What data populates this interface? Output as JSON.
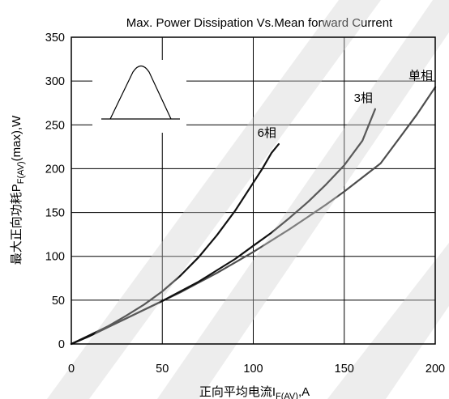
{
  "chart_data": {
    "type": "line",
    "title": "Max. Power Dissipation Vs.Mean forward Current",
    "xlabel": {
      "main": "正向平均电流I",
      "sub": "F(AV)",
      "suffix": ",A"
    },
    "ylabel": {
      "main": "最大正向功耗P",
      "sub": "F(AV)",
      "suffix": "(max),W"
    },
    "xlim": [
      0,
      200
    ],
    "ylim": [
      0,
      350
    ],
    "xticks": [
      0,
      50,
      100,
      150,
      200
    ],
    "yticks": [
      0,
      50,
      100,
      150,
      200,
      250,
      300,
      350
    ],
    "grid": true,
    "series": [
      {
        "name": "单相",
        "color": "#4d4d4d",
        "x": [
          0,
          10,
          20,
          30,
          40,
          50,
          60,
          70,
          80,
          90,
          100,
          110,
          120,
          130,
          140,
          150,
          160,
          170,
          180,
          190,
          200
        ],
        "y": [
          0,
          9,
          19,
          29,
          39,
          49,
          59,
          70,
          81,
          93,
          105,
          118,
          131,
          145,
          159,
          174,
          190,
          206,
          234,
          262,
          293
        ]
      },
      {
        "name": "3相",
        "color": "#111111",
        "x": [
          0,
          10,
          20,
          30,
          40,
          50,
          60,
          70,
          80,
          90,
          100,
          110,
          120,
          130,
          140,
          150,
          160,
          167
        ],
        "y": [
          0,
          9,
          19,
          29,
          39,
          49,
          60,
          71,
          84,
          97,
          112,
          127,
          144,
          162,
          182,
          204,
          232,
          268
        ]
      },
      {
        "name": "6相",
        "color": "#111111",
        "x": [
          0,
          10,
          20,
          30,
          40,
          50,
          60,
          70,
          80,
          90,
          100,
          105,
          110,
          114
        ],
        "y": [
          0,
          10,
          20,
          32,
          45,
          60,
          78,
          99,
          124,
          152,
          184,
          200,
          218,
          228
        ]
      }
    ],
    "inset": "half-sine-pulse"
  }
}
